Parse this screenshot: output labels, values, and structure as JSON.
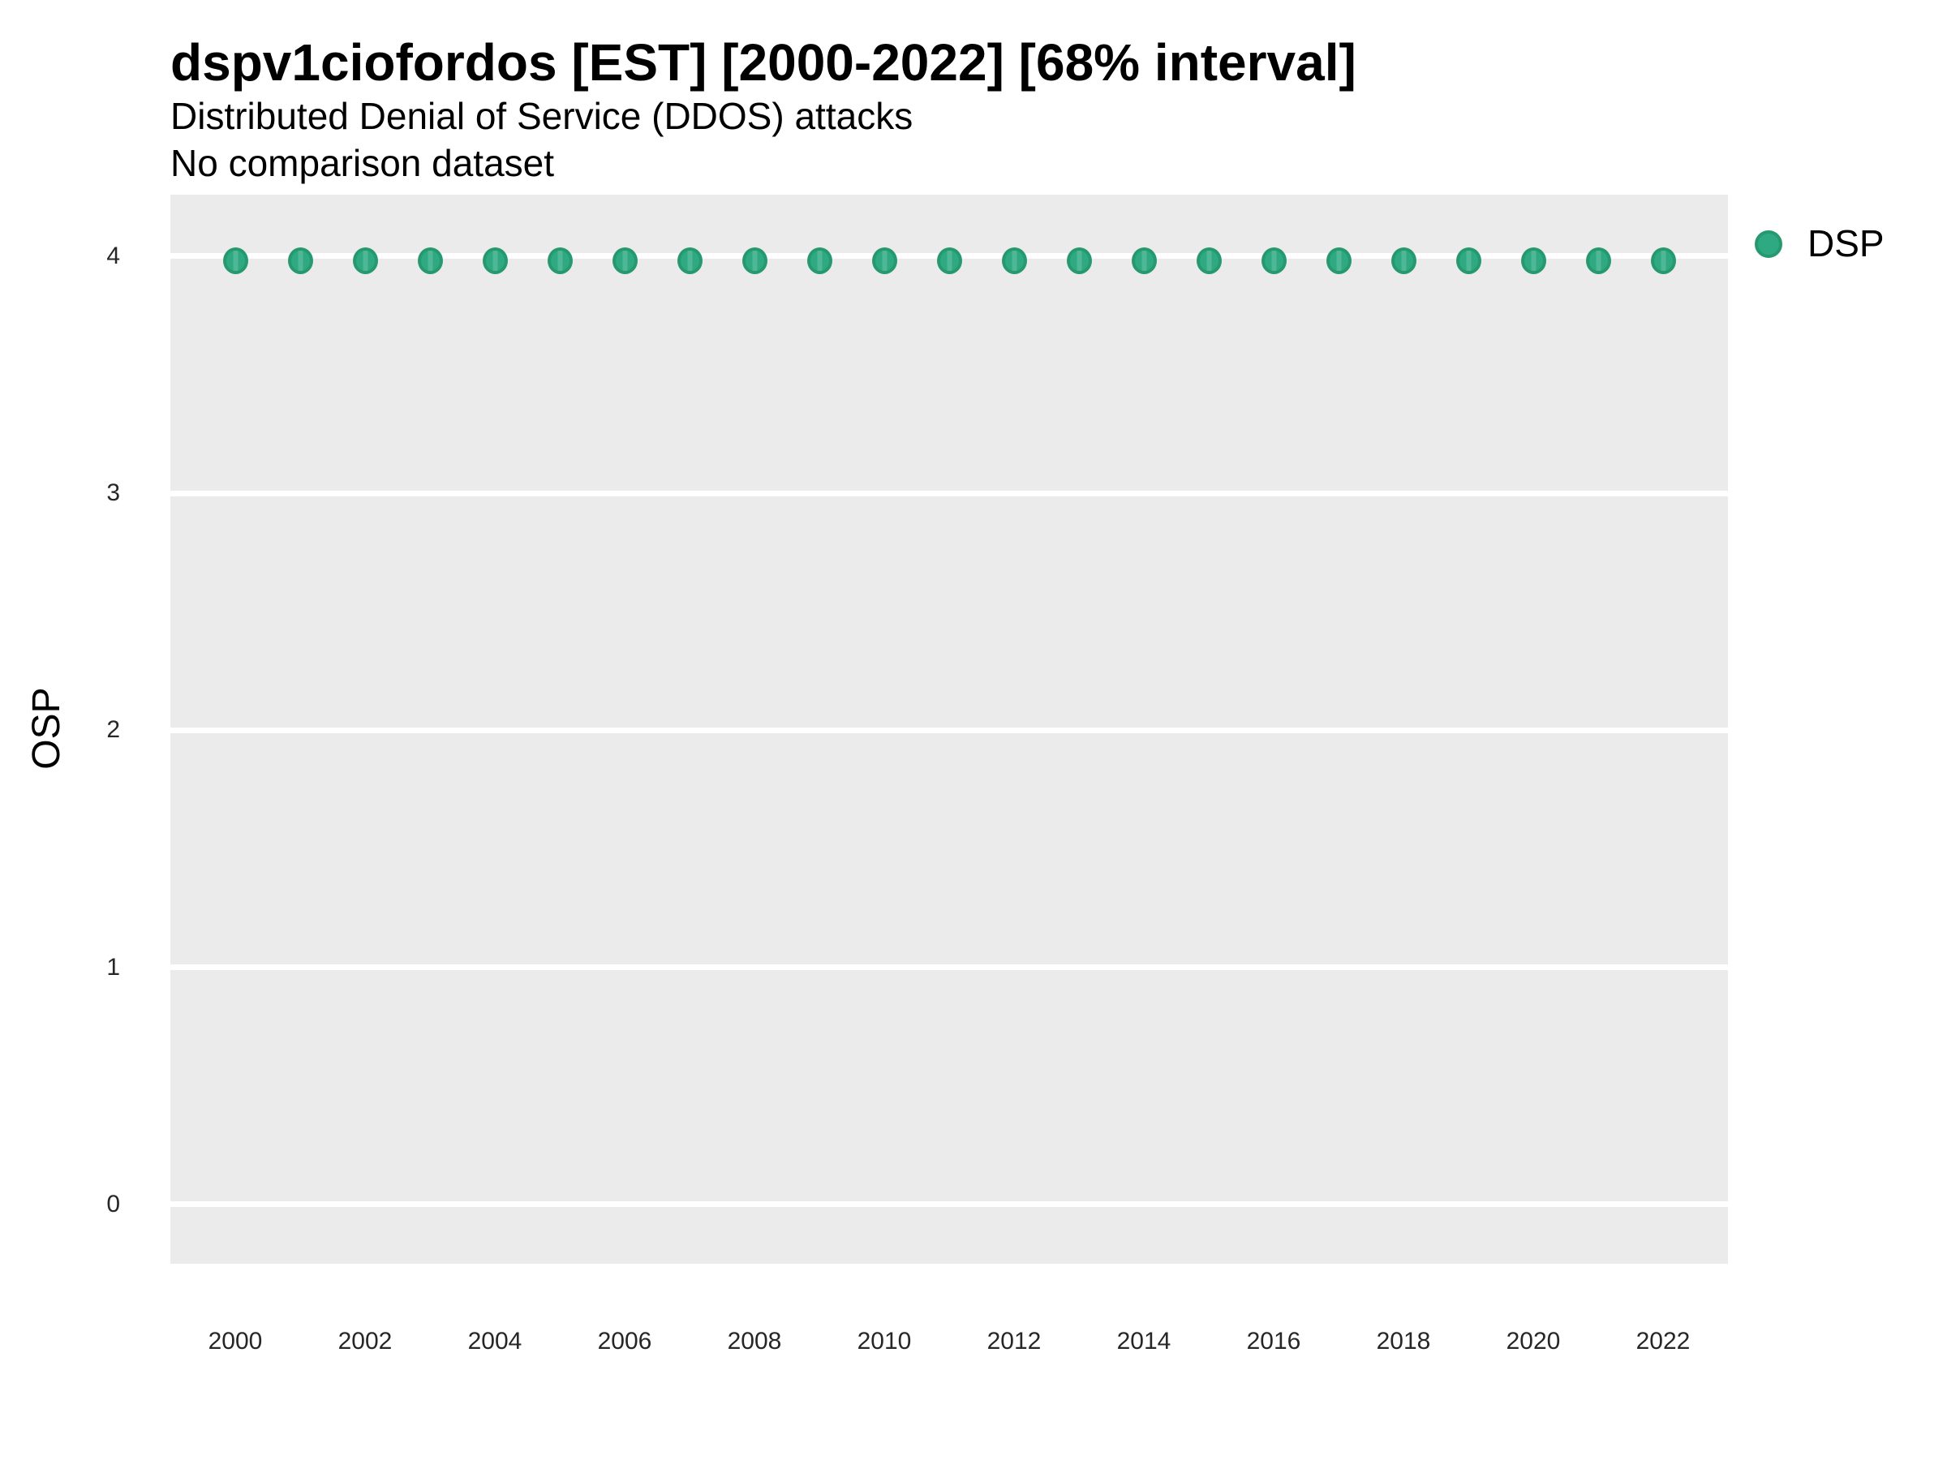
{
  "chart_data": {
    "type": "scatter",
    "title": "dspv1ciofordos [EST] [2000-2022] [68% interval]",
    "subtitle": "Distributed Denial of Service (DDOS) attacks",
    "note": "No comparison dataset",
    "xlabel": "",
    "ylabel": "OSP",
    "x": [
      2000,
      2001,
      2002,
      2003,
      2004,
      2005,
      2006,
      2007,
      2008,
      2009,
      2010,
      2011,
      2012,
      2013,
      2014,
      2015,
      2016,
      2017,
      2018,
      2019,
      2020,
      2021,
      2022
    ],
    "series": [
      {
        "name": "DSP",
        "values": [
          3.98,
          3.98,
          3.98,
          3.98,
          3.98,
          3.98,
          3.98,
          3.98,
          3.98,
          3.98,
          3.98,
          3.98,
          3.98,
          3.98,
          3.98,
          3.98,
          3.98,
          3.98,
          3.98,
          3.98,
          3.98,
          3.98,
          3.98
        ]
      }
    ],
    "xlim": [
      1999,
      2023
    ],
    "ylim": [
      -0.25,
      4.26
    ],
    "xticks": [
      2000,
      2002,
      2004,
      2006,
      2008,
      2010,
      2012,
      2014,
      2016,
      2018,
      2020,
      2022
    ],
    "yticks": [
      0,
      1,
      2,
      3,
      4
    ],
    "grid": "horizontal major gridlines only",
    "legend_position": "right",
    "colors": {
      "point_fill": "#2ea982",
      "point_border": "#27996f",
      "panel_background": "#ebebeb",
      "gridline": "#ffffff",
      "tick_text": "#262626",
      "title_text": "#000000"
    }
  }
}
